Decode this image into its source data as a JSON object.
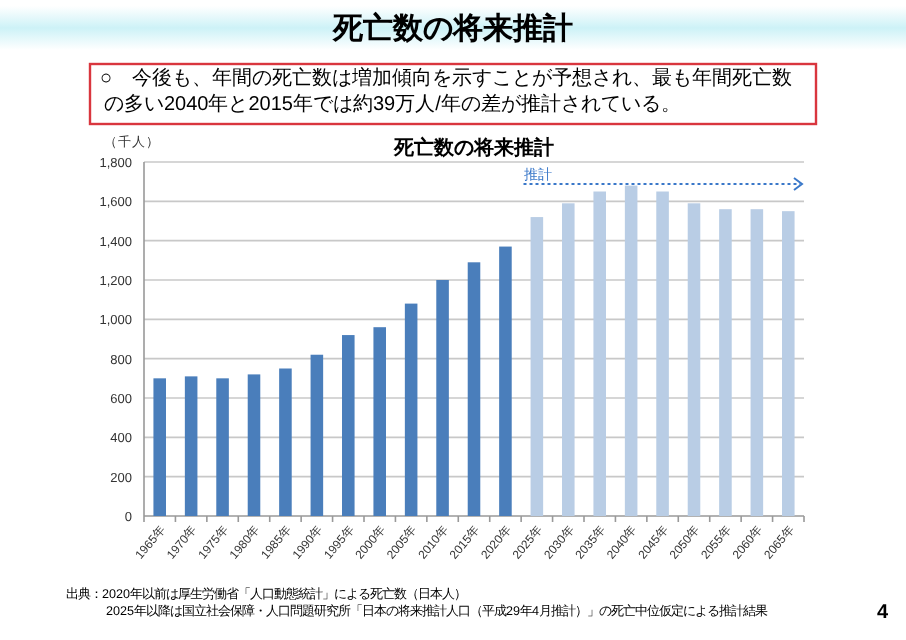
{
  "chart_data": {
    "type": "bar",
    "title": "死亡数の将来推計",
    "ylabel": "（千人）",
    "categories": [
      "1965年",
      "1970年",
      "1975年",
      "1980年",
      "1985年",
      "1990年",
      "1995年",
      "2000年",
      "2005年",
      "2010年",
      "2015年",
      "2020年",
      "2025年",
      "2030年",
      "2035年",
      "2040年",
      "2045年",
      "2050年",
      "2055年",
      "2060年",
      "2065年"
    ],
    "values": [
      700,
      710,
      700,
      720,
      750,
      820,
      920,
      960,
      1080,
      1200,
      1290,
      1370,
      1520,
      1590,
      1650,
      1680,
      1650,
      1590,
      1560,
      1560,
      1550
    ],
    "colors": [
      "#4a7ebb",
      "#4a7ebb",
      "#4a7ebb",
      "#4a7ebb",
      "#4a7ebb",
      "#4a7ebb",
      "#4a7ebb",
      "#4a7ebb",
      "#4a7ebb",
      "#4a7ebb",
      "#4a7ebb",
      "#4a7ebb",
      "#b9cde5",
      "#b9cde5",
      "#b9cde5",
      "#b9cde5",
      "#b9cde5",
      "#b9cde5",
      "#b9cde5",
      "#b9cde5",
      "#b9cde5"
    ],
    "ylim": [
      0,
      1800
    ],
    "yticks": [
      {
        "value": 0,
        "label": "0"
      },
      {
        "value": 200,
        "label": "200"
      },
      {
        "value": 400,
        "label": "400"
      },
      {
        "value": 600,
        "label": "600"
      },
      {
        "value": 800,
        "label": "800"
      },
      {
        "value": 1000,
        "label": "1,000"
      },
      {
        "value": 1200,
        "label": "1,200"
      },
      {
        "value": 1400,
        "label": "1,400"
      },
      {
        "value": 1600,
        "label": "1,600"
      },
      {
        "value": 1800,
        "label": "1,800"
      }
    ],
    "grid": "y",
    "annotations": [
      "死亡数の将来推計",
      "○　今後も、年間の死亡数は増加傾向を示すことが予想され、最も年間死亡数の多い2040年と2015年では約39万人/年の差が推計されている。",
      "推計",
      "出典：2020年以前は厚生労働省「人口動態統計」による死亡数（日本人）",
      "2025年以降は国立社会保障・人口問題研究所「日本の将来推計人口（平成29年4月推計）」の死亡中位仮定による推計結果",
      "4"
    ]
  }
}
